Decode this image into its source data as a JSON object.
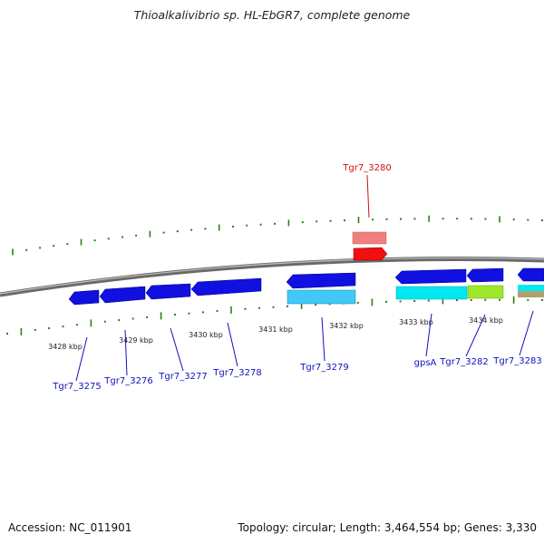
{
  "title": "Thioalkalivibrio sp. HL-EbGR7, complete genome",
  "footer": {
    "accession": "Accession: NC_011901",
    "topology": "Topology: circular; Length: 3,464,554 bp; Genes: 3,330"
  },
  "colors": {
    "backbone": "#808080",
    "tick": "#2e7d1a",
    "gene_fwd": "#1010e0",
    "gene_rev": "#1010e0",
    "cds_cyan": "#00e8f0",
    "cds_light_blue": "#40c8f8",
    "cds_green": "#9ee82a",
    "cds_tan": "#b0a070",
    "highlight": "#f01010",
    "highlight_light": "#f08080",
    "label_blue": "#1010c0",
    "label_red": "#d01010"
  },
  "scale": {
    "labels": [
      "3428 kbp",
      "3429 kbp",
      "3430 kbp",
      "3431 kbp",
      "3432 kbp",
      "3433 kbp",
      "3434 kbp"
    ]
  },
  "genes": [
    {
      "id": "Tgr7_3275",
      "label": "Tgr7_3275"
    },
    {
      "id": "Tgr7_3276",
      "label": "Tgr7_3276"
    },
    {
      "id": "Tgr7_3277",
      "label": "Tgr7_3277"
    },
    {
      "id": "Tgr7_3278",
      "label": "Tgr7_3278"
    },
    {
      "id": "Tgr7_3279",
      "label": "Tgr7_3279"
    },
    {
      "id": "Tgr7_3280",
      "label": "Tgr7_3280"
    },
    {
      "id": "gpsA",
      "label": "gpsA"
    },
    {
      "id": "Tgr7_3282",
      "label": "Tgr7_3282"
    },
    {
      "id": "Tgr7_3283",
      "label": "Tgr7_3283"
    }
  ]
}
